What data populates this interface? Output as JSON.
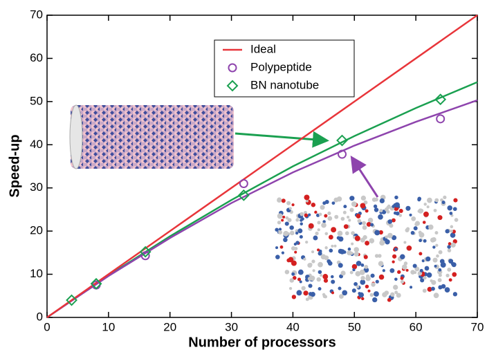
{
  "chart_data": {
    "type": "line",
    "xlabel": "Number of processors",
    "ylabel": "Speed-up",
    "xlim": [
      0,
      70
    ],
    "ylim": [
      0,
      70
    ],
    "xticks": [
      0,
      10,
      20,
      30,
      40,
      50,
      60,
      70
    ],
    "yticks": [
      0,
      10,
      20,
      30,
      40,
      50,
      60,
      70
    ],
    "legend": "upper center",
    "series": [
      {
        "name": "Ideal",
        "color": "#e8353a",
        "marker": "none",
        "x": [
          0,
          70
        ],
        "values": [
          0,
          70
        ]
      },
      {
        "name": "Polypeptide",
        "color": "#8e44ad",
        "marker": "circle",
        "x": [
          8,
          16,
          32,
          48,
          64
        ],
        "values": [
          7.5,
          14.3,
          31,
          37.8,
          46
        ]
      },
      {
        "name": "BN nanotube",
        "color": "#1aa050",
        "marker": "diamond",
        "x": [
          4,
          8,
          16,
          32,
          48,
          64
        ],
        "values": [
          4,
          7.8,
          15.2,
          28.3,
          41,
          50.5
        ]
      }
    ],
    "fits": [
      {
        "color": "#1aa050",
        "x": [
          0,
          10,
          20,
          30,
          40,
          50,
          60,
          70
        ],
        "values": [
          0,
          9.7,
          18.8,
          27.2,
          35,
          42,
          48.5,
          54.5
        ]
      },
      {
        "color": "#8e44ad",
        "x": [
          0,
          10,
          20,
          30,
          40,
          50,
          60,
          70
        ],
        "values": [
          0,
          9.6,
          18.4,
          26.5,
          33.6,
          39.8,
          45.3,
          50.3
        ]
      }
    ]
  }
}
